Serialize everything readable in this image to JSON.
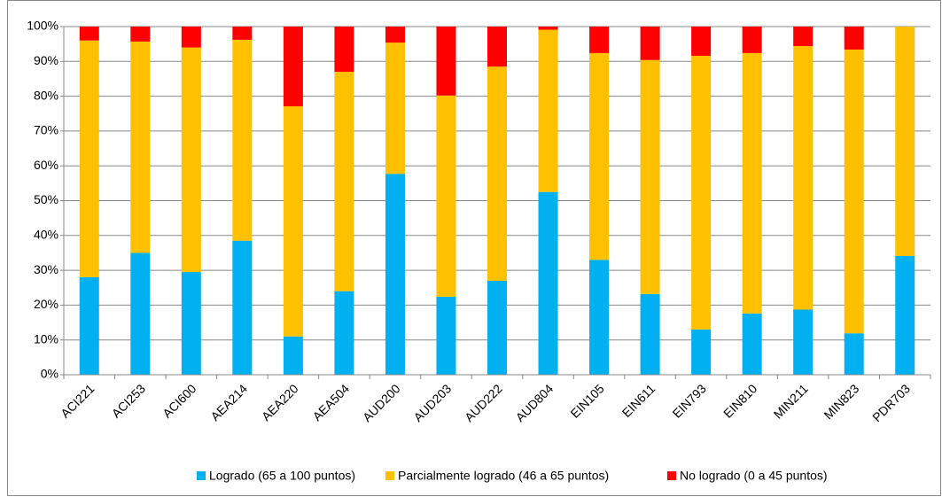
{
  "chart_data": {
    "type": "stacked_bar",
    "categories": [
      "ACI221",
      "ACI253",
      "ACI600",
      "AEA214",
      "AEA220",
      "AEA504",
      "AUD200",
      "AUD203",
      "AUD222",
      "AUD804",
      "EIN105",
      "EIN611",
      "EIN793",
      "EIN810",
      "MIN211",
      "MIN823",
      "PDR703"
    ],
    "series": [
      {
        "name": "Logrado (65 a 100 puntos)",
        "color": "#00b0f0",
        "values": [
          28,
          35,
          29.5,
          38.5,
          11,
          24,
          57.7,
          22.4,
          27,
          52.5,
          33,
          23.2,
          13,
          17.6,
          18.7,
          11.9,
          34.1
        ]
      },
      {
        "name": "Parcialmente logrado (46 a 65 puntos)",
        "color": "#ffc000",
        "values": [
          68,
          60.7,
          64.5,
          57.7,
          66.1,
          63,
          37.7,
          57.8,
          61.5,
          46.6,
          59.4,
          67.2,
          78.6,
          74.8,
          75.7,
          81.5,
          65.9
        ]
      },
      {
        "name": "No logrado (0 a 45 puntos)",
        "color": "#ff0000",
        "values": [
          4,
          4.3,
          6,
          3.8,
          22.9,
          13,
          4.6,
          19.8,
          11.5,
          0.9,
          7.6,
          9.6,
          8.4,
          7.6,
          5.6,
          6.6,
          0
        ]
      }
    ],
    "ylim": [
      0,
      100
    ],
    "yticks": [
      {
        "value": 0,
        "label": "0%"
      },
      {
        "value": 10,
        "label": "10%"
      },
      {
        "value": 20,
        "label": "20%"
      },
      {
        "value": 30,
        "label": "30%"
      },
      {
        "value": 40,
        "label": "40%"
      },
      {
        "value": 50,
        "label": "50%"
      },
      {
        "value": 60,
        "label": "60%"
      },
      {
        "value": 70,
        "label": "70%"
      },
      {
        "value": 80,
        "label": "80%"
      },
      {
        "value": 90,
        "label": "90%"
      },
      {
        "value": 100,
        "label": "100%"
      }
    ],
    "grid": true,
    "legend": "bottom"
  }
}
